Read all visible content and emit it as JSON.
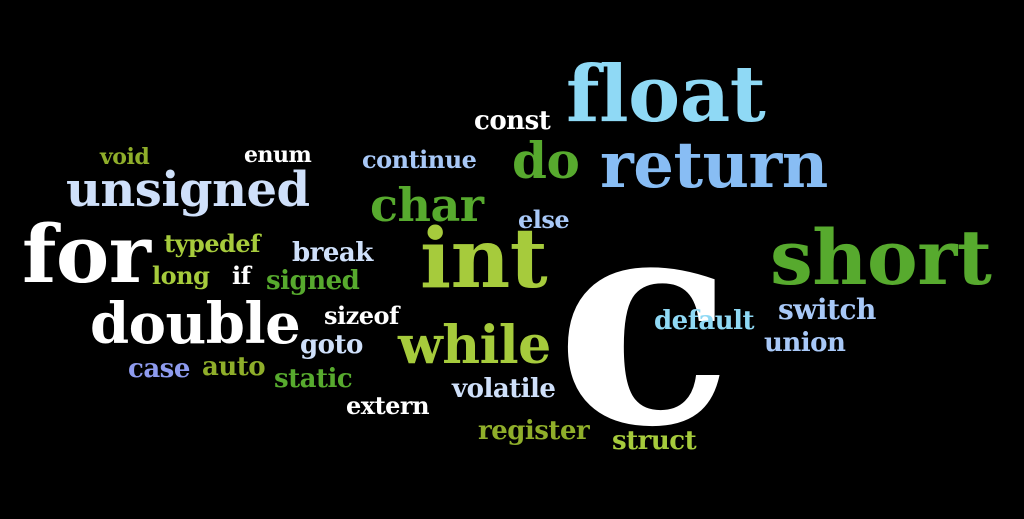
{
  "words": {
    "float": "float",
    "const": "const",
    "return": "return",
    "do": "do",
    "continue": "continue",
    "void": "void",
    "enum": "enum",
    "unsigned": "unsigned",
    "char": "char",
    "else": "else",
    "c": "c",
    "for": "for",
    "typedef": "typedef",
    "break": "break",
    "int": "int",
    "short": "short",
    "long": "long",
    "if": "if",
    "signed": "signed",
    "double": "double",
    "sizeof": "sizeof",
    "default": "default",
    "switch": "switch",
    "goto": "goto",
    "while": "while",
    "union": "union",
    "case": "case",
    "auto": "auto",
    "static": "static",
    "volatile": "volatile",
    "extern": "extern",
    "register": "register",
    "struct": "struct"
  },
  "colors": {
    "background": "#000000",
    "white": "#FFFFFF",
    "light_green": "#A6CB3C",
    "dark_green": "#57AA2E",
    "olive": "#8FAE2A",
    "light_blue": "#8FD9F5",
    "medium_blue": "#88BDF4",
    "pale_blue": "#CFE0FA",
    "sky_blue": "#A8C8F7",
    "purple": "#8E9BEF"
  }
}
